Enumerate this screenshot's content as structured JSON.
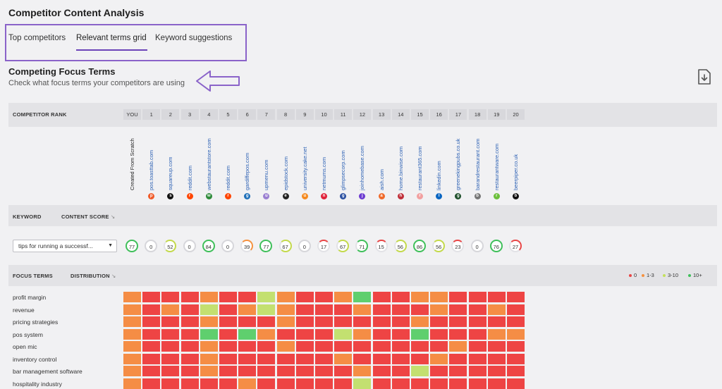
{
  "header": {
    "title": "Competitor Content Analysis"
  },
  "tabs": [
    {
      "label": "Top competitors",
      "active": false
    },
    {
      "label": "Relevant terms grid",
      "active": true
    },
    {
      "label": "Keyword suggestions",
      "active": false
    }
  ],
  "section": {
    "title": "Competing Focus Terms",
    "subtitle": "Check what focus terms your competitors are using"
  },
  "rank_header": {
    "label": "COMPETITOR RANK",
    "columns": [
      "YOU",
      "1",
      "2",
      "3",
      "4",
      "5",
      "6",
      "7",
      "8",
      "9",
      "10",
      "11",
      "12",
      "13",
      "14",
      "15",
      "16",
      "17",
      "18",
      "19",
      "20"
    ]
  },
  "competitors": [
    {
      "name": "Created From Scratch",
      "is_link": false,
      "icon_color": "#000000"
    },
    {
      "name": "pos.toasttab.com",
      "is_link": true,
      "icon_color": "#f05a28"
    },
    {
      "name": "squareup.com",
      "is_link": true,
      "icon_color": "#111111"
    },
    {
      "name": "reddit.com",
      "is_link": true,
      "icon_color": "#ff4500"
    },
    {
      "name": "webstaurantstore.com",
      "is_link": true,
      "icon_color": "#2e8b3a"
    },
    {
      "name": "reddit.com",
      "is_link": true,
      "icon_color": "#ff4500"
    },
    {
      "name": "gardiffepos.com",
      "is_link": true,
      "icon_color": "#1e6fb8"
    },
    {
      "name": "upmenu.com",
      "is_link": true,
      "icon_color": "#9a7fd1"
    },
    {
      "name": "epidstock.com",
      "is_link": true,
      "icon_color": "#222222"
    },
    {
      "name": "university.cake.net",
      "is_link": true,
      "icon_color": "#f58a1f"
    },
    {
      "name": "netmums.com",
      "is_link": true,
      "icon_color": "#e0223a"
    },
    {
      "name": "glimpsecorp.com",
      "is_link": true,
      "icon_color": "#2a4fa0"
    },
    {
      "name": "joinhomebase.com",
      "is_link": true,
      "icon_color": "#6c3bd1"
    },
    {
      "name": "aish.com",
      "is_link": true,
      "icon_color": "#f06a2a"
    },
    {
      "name": "home.binwise.com",
      "is_link": true,
      "icon_color": "#c0303a"
    },
    {
      "name": "restaurant365.com",
      "is_link": true,
      "icon_color": "#f2a0a0"
    },
    {
      "name": "linkedin.com",
      "is_link": true,
      "icon_color": "#0a66c2"
    },
    {
      "name": "greenekingpubs.co.uk",
      "is_link": true,
      "icon_color": "#1d4f2a"
    },
    {
      "name": "barandrestaurant.com",
      "is_link": true,
      "icon_color": "#777777"
    },
    {
      "name": "restaurantware.com",
      "is_link": true,
      "icon_color": "#6cbf3c"
    },
    {
      "name": "beerpiper.co.uk",
      "is_link": true,
      "icon_color": "#111111"
    }
  ],
  "keyword_header": {
    "keyword_label": "KEYWORD",
    "score_label": "CONTENT SCORE"
  },
  "keyword_select": {
    "value": "tips for running a successf..."
  },
  "content_scores": [
    77,
    0,
    52,
    0,
    84,
    0,
    39,
    77,
    67,
    0,
    17,
    67,
    71,
    15,
    56,
    86,
    56,
    23,
    0,
    76,
    27
  ],
  "focus_header": {
    "terms_label": "FOCUS TERMS",
    "distribution_label": "DISTRIBUTION"
  },
  "legend": [
    {
      "label": "0",
      "color": "#e84545"
    },
    {
      "label": "1-3",
      "color": "#f5913e"
    },
    {
      "label": "3-10",
      "color": "#c3e05a"
    },
    {
      "label": "10+",
      "color": "#3fbf5a"
    }
  ],
  "cell_colors": {
    "0": "#ee4444",
    "1": "#f58d45",
    "2": "#c3e070",
    "3": "#5fcf6e"
  },
  "focus_terms": [
    {
      "term": "profit margin",
      "levels": [
        1,
        0,
        0,
        0,
        1,
        0,
        0,
        2,
        1,
        0,
        0,
        1,
        3,
        0,
        0,
        1,
        1,
        0,
        0,
        0,
        0
      ]
    },
    {
      "term": "revenue",
      "levels": [
        1,
        0,
        1,
        0,
        2,
        0,
        1,
        2,
        1,
        0,
        0,
        0,
        1,
        0,
        0,
        0,
        1,
        0,
        0,
        1,
        0
      ]
    },
    {
      "term": "pricing strategies",
      "levels": [
        1,
        0,
        0,
        0,
        1,
        0,
        0,
        0,
        1,
        0,
        0,
        0,
        0,
        0,
        0,
        1,
        0,
        0,
        0,
        0,
        0
      ]
    },
    {
      "term": "pos system",
      "levels": [
        1,
        0,
        0,
        0,
        3,
        0,
        3,
        1,
        0,
        0,
        0,
        2,
        1,
        0,
        0,
        3,
        0,
        0,
        0,
        1,
        1
      ]
    },
    {
      "term": "open mic",
      "levels": [
        1,
        0,
        0,
        0,
        1,
        0,
        0,
        0,
        1,
        0,
        0,
        0,
        0,
        0,
        0,
        0,
        0,
        1,
        0,
        0,
        0
      ]
    },
    {
      "term": "inventory control",
      "levels": [
        1,
        0,
        0,
        0,
        1,
        0,
        0,
        0,
        0,
        0,
        0,
        1,
        0,
        0,
        0,
        0,
        1,
        0,
        0,
        0,
        0
      ]
    },
    {
      "term": "bar management software",
      "levels": [
        1,
        0,
        0,
        0,
        1,
        0,
        0,
        0,
        0,
        0,
        0,
        0,
        1,
        0,
        0,
        2,
        0,
        0,
        0,
        0,
        0
      ]
    },
    {
      "term": "hospitality industry",
      "levels": [
        1,
        0,
        0,
        0,
        0,
        0,
        1,
        0,
        0,
        0,
        0,
        0,
        2,
        0,
        0,
        0,
        0,
        0,
        0,
        0,
        0
      ]
    }
  ]
}
